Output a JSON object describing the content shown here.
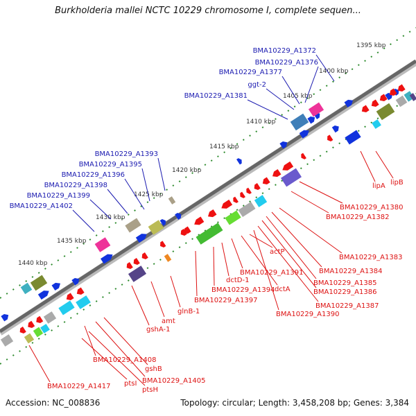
{
  "title": "Burkholderia mallei NCTC 10229 chromosome I, complete sequen...",
  "footer": {
    "accession": "Accession: NC_008836",
    "summary": "Topology: circular; Length: 3,458,208 bp; Genes: 3,384"
  },
  "colors": {
    "forward_label": "#1a1ab0",
    "reverse_label": "#dd1111",
    "ruler": "#333333",
    "tick": "#2e8b2e",
    "arrow_red": "#ee1111",
    "arrow_blue": "#1133dd"
  },
  "scale_ticks": [
    "1395 kbp",
    "1400 kbp",
    "1405 kbp",
    "1410 kbp",
    "1415 kbp",
    "1420 kbp",
    "1425 kbp",
    "1430 kbp",
    "1435 kbp",
    "1440 kbp"
  ],
  "forward_labels": [
    "BMA10229_A1372",
    "BMA10229_A1376",
    "BMA10229_A1377",
    "ggt-2",
    "BMA10229_A1381",
    "BMA10229_A1393",
    "BMA10229_A1395",
    "BMA10229_A1396",
    "BMA10229_A1398",
    "BMA10229_A1399",
    "BMA10229_A1402"
  ],
  "reverse_labels": [
    "lipB",
    "lipA",
    "BMA10229_A1380",
    "BMA10229_A1382",
    "BMA10229_A1383",
    "BMA10229_A1384",
    "BMA10229_A1385",
    "BMA10229_A1386",
    "BMA10229_A1387",
    "BMA10229_A1390",
    "actP",
    "BMA10229_A1391",
    "dctA",
    "dctD-1",
    "BMA10229_A1394",
    "BMA10229_A1397",
    "glnB-1",
    "amt",
    "gshA-1",
    "BMA10229_A1408",
    "gshB",
    "BMA10229_A1405",
    "ptsH",
    "ptsI",
    "BMA10229_A1417"
  ]
}
